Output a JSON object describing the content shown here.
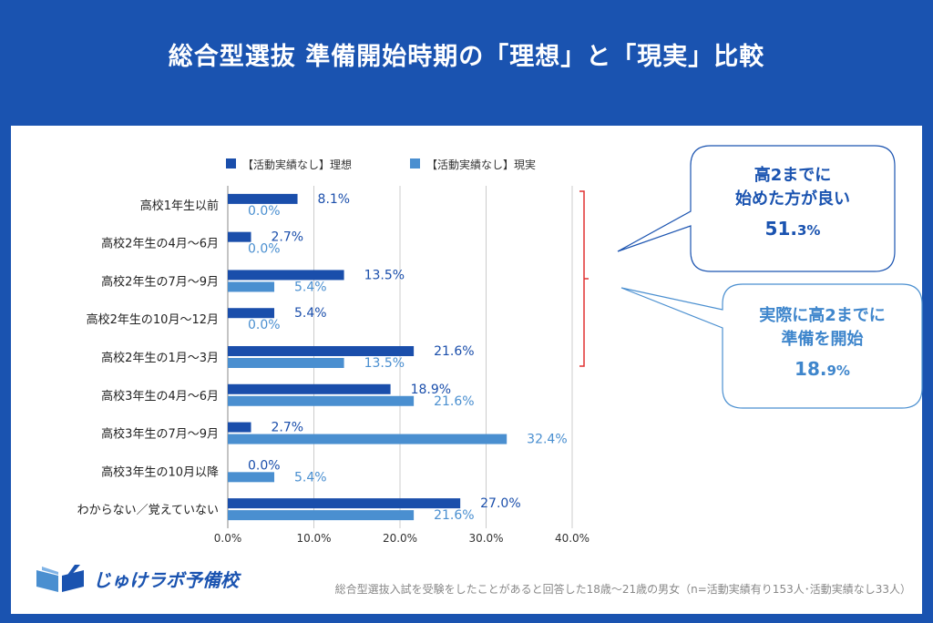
{
  "title": "総合型選抜 準備開始時期の「理想」と「現実」比較",
  "chart_data": {
    "type": "bar",
    "orientation": "horizontal",
    "categories": [
      "高校1年生以前",
      "高校2年生の4月～6月",
      "高校2年生の7月～9月",
      "高校2年生の10月～12月",
      "高校2年生の1月～3月",
      "高校3年生の4月～6月",
      "高校3年生の7月～9月",
      "高校3年生の10月以降",
      "わからない／覚えていない"
    ],
    "series": [
      {
        "name": "【活動実績なし】理想",
        "color": "#1a4eab",
        "values": [
          8.1,
          2.7,
          13.5,
          5.4,
          21.6,
          18.9,
          2.7,
          0.0,
          27.0
        ]
      },
      {
        "name": "【活動実績なし】現実",
        "color": "#4a8fd0",
        "values": [
          0.0,
          0.0,
          5.4,
          0.0,
          13.5,
          21.6,
          32.4,
          5.4,
          21.6
        ]
      }
    ],
    "xlim": [
      0,
      40
    ],
    "xticks": [
      "0.0%",
      "10.0%",
      "20.0%",
      "30.0%",
      "40.0%"
    ],
    "legend_position": "top",
    "grid": true
  },
  "callouts": {
    "ideal": {
      "line1": "高2までに",
      "line2": "始めた方が良い",
      "value_main": "51.",
      "value_small": "3%"
    },
    "actual": {
      "line1": "実際に高2までに",
      "line2": "準備を開始",
      "value_main": "18.",
      "value_small": "9%"
    }
  },
  "logo": {
    "text": "じゅけラボ予備校",
    "icon": "open-book-icon"
  },
  "footnote": "総合型選抜入試を受験をしたことがあると回答した18歳～21歳の男女（n=活動実績有り153人･活動実績なし33人）"
}
